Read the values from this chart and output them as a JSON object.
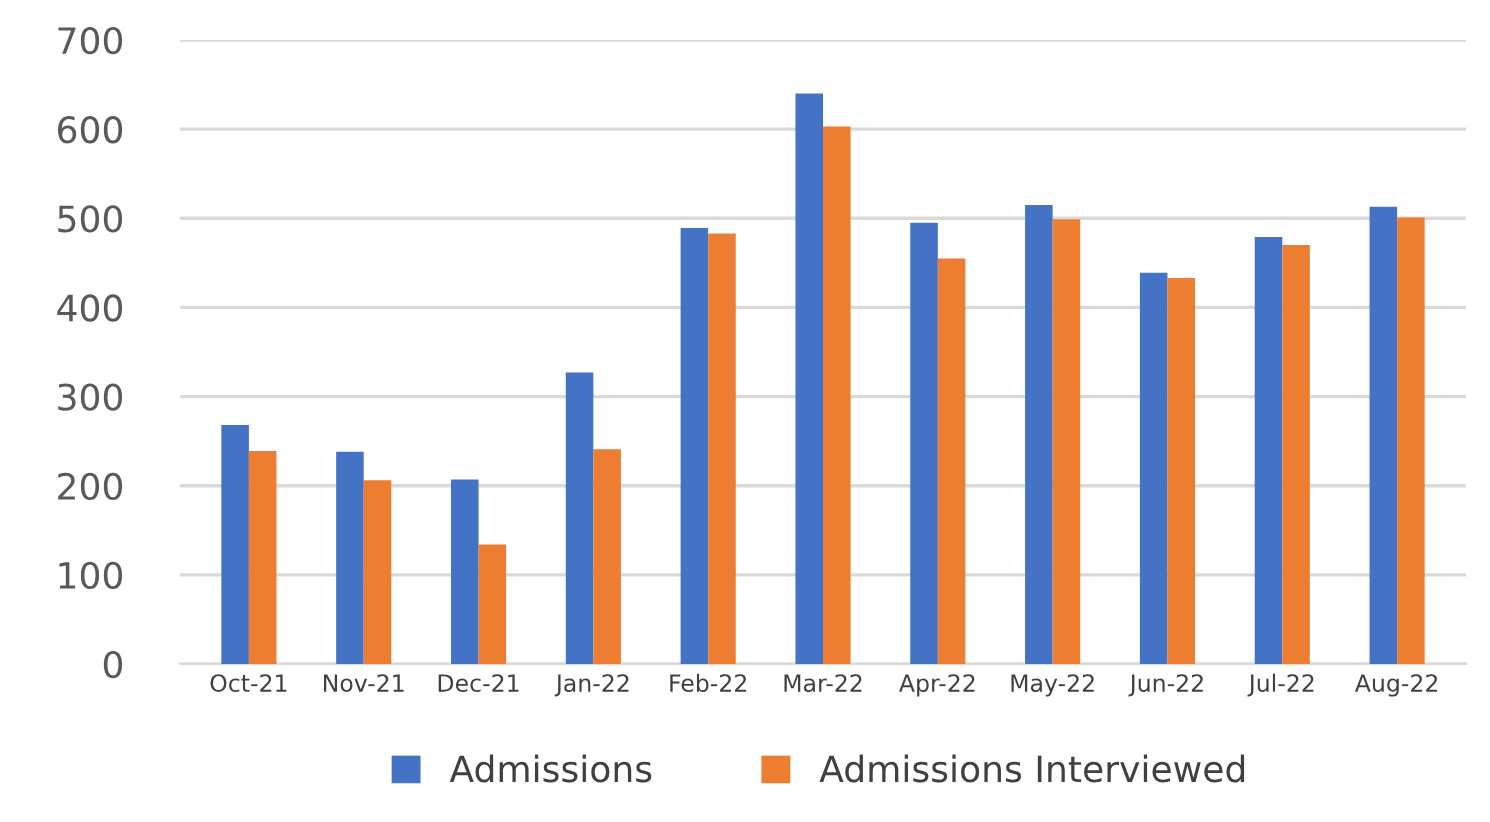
{
  "chart_data": {
    "type": "bar",
    "categories": [
      "Oct-21",
      "Nov-21",
      "Dec-21",
      "Jan-22",
      "Feb-22",
      "Mar-22",
      "Apr-22",
      "May-22",
      "Jun-22",
      "Jul-22",
      "Aug-22"
    ],
    "series": [
      {
        "name": "Admissions",
        "color": "#4472c4",
        "values": [
          268,
          238,
          207,
          327,
          489,
          640,
          495,
          515,
          439,
          479,
          513
        ]
      },
      {
        "name": "Admissions Interviewed",
        "color": "#ed7d31",
        "values": [
          239,
          206,
          134,
          241,
          483,
          603,
          455,
          499,
          433,
          470,
          501
        ]
      }
    ],
    "ylim": [
      0,
      700
    ],
    "yticks": [
      0,
      100,
      200,
      300,
      400,
      500,
      600,
      700
    ],
    "grid": "y",
    "legend": "bottom"
  }
}
